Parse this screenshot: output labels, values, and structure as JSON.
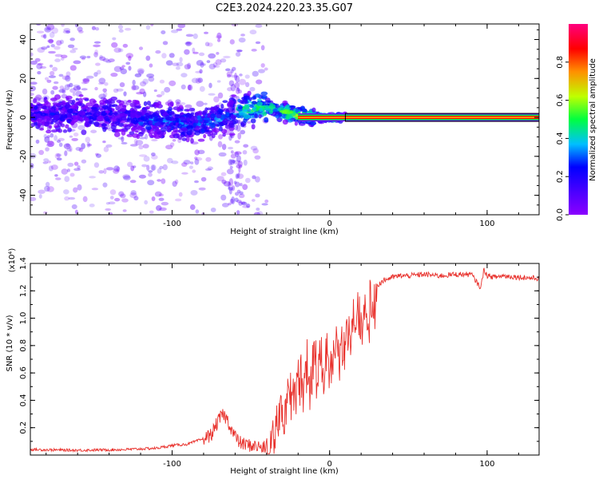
{
  "title": "C2E3.2024.220.23.35.G07",
  "colors": {
    "snr_line": "#e8302b",
    "axes": "#000000",
    "background": "#ffffff"
  },
  "chart_data": [
    {
      "type": "heatmap",
      "xlabel": "Height of straight line (km)",
      "ylabel": "Frequency (Hz)",
      "xlim": [
        -190,
        133
      ],
      "ylim": [
        -50,
        48
      ],
      "xticks": [
        -100,
        0,
        100
      ],
      "xtick_labels": [
        "-100",
        "0",
        "100"
      ],
      "yticks": [
        -40,
        -20,
        0,
        20,
        40
      ],
      "ytick_labels": [
        "-40",
        "-20",
        "0",
        "20",
        "40"
      ],
      "colorbar": {
        "label": "Normalized spectral amplitude",
        "range": [
          0,
          1
        ],
        "ticks": [
          0.0,
          0.2,
          0.4,
          0.6,
          0.8
        ],
        "tick_labels": [
          "0.0",
          "0.2",
          "0.4",
          "0.6",
          "0.8"
        ],
        "colormap": "rainbow (purple-blue-cyan-green-yellow-orange-red-magenta)"
      },
      "features": [
        {
          "description": "scattered low-amplitude noise across all frequencies",
          "x_range": [
            -190,
            -40
          ],
          "amplitude": 0.1
        },
        {
          "description": "noisy ridge near 0 Hz",
          "x_range": [
            -190,
            -40
          ],
          "y": 0,
          "amplitude": 0.2
        },
        {
          "description": "ridge rising toward ~5 Hz, increasing amplitude",
          "x_range": [
            -120,
            -30
          ],
          "amplitude": 0.45
        },
        {
          "description": "steady strong line at 0 Hz",
          "x_range": [
            -20,
            133
          ],
          "y": 0,
          "amplitude": 0.9
        }
      ],
      "ridge": {
        "x": [
          -190,
          -160,
          -130,
          -110,
          -90,
          -75,
          -65,
          -55,
          -45,
          -38,
          -30,
          -20,
          -10,
          0,
          10,
          20,
          60,
          100,
          133
        ],
        "y": [
          1,
          2,
          0,
          -1,
          -3,
          -2,
          1,
          3,
          5,
          5,
          3,
          1,
          0,
          0,
          0,
          0,
          0,
          0,
          0
        ]
      }
    },
    {
      "type": "line",
      "xlabel": "Height of straight line (km)",
      "ylabel": "SNR (10 * v/v)",
      "y_multiplier": "(x10⁴)",
      "xlim": [
        -190,
        133
      ],
      "ylim": [
        0,
        1.4
      ],
      "xticks": [
        -100,
        0,
        100
      ],
      "xtick_labels": [
        "-100",
        "0",
        "100"
      ],
      "yticks": [
        0.2,
        0.4,
        0.6,
        0.8,
        1.0,
        1.2,
        1.4
      ],
      "ytick_labels": [
        "0.2",
        "0.4",
        "0.6",
        "0.8",
        "1.0",
        "1.2",
        "1.4"
      ],
      "series": [
        {
          "color": "#e8302b",
          "x": [
            -190,
            -160,
            -130,
            -110,
            -100,
            -90,
            -80,
            -75,
            -72,
            -68,
            -65,
            -62,
            -58,
            -55,
            -50,
            -45,
            -40,
            -38,
            -36,
            -34,
            -32,
            -30,
            -28,
            -26,
            -24,
            -22,
            -20,
            -18,
            -16,
            -14,
            -12,
            -10,
            -8,
            -6,
            -4,
            -2,
            0,
            2,
            4,
            6,
            8,
            10,
            12,
            14,
            16,
            18,
            20,
            25,
            30,
            35,
            40,
            45,
            50,
            60,
            70,
            80,
            90,
            96,
            98,
            100,
            105,
            110,
            120,
            133
          ],
          "y": [
            0.04,
            0.035,
            0.04,
            0.05,
            0.07,
            0.08,
            0.12,
            0.15,
            0.22,
            0.3,
            0.26,
            0.18,
            0.1,
            0.08,
            0.07,
            0.06,
            0.05,
            0.1,
            0.2,
            0.3,
            0.45,
            0.55,
            0.42,
            0.6,
            0.5,
            0.65,
            0.58,
            0.72,
            0.55,
            0.78,
            0.62,
            0.85,
            0.68,
            0.88,
            0.72,
            0.9,
            0.6,
            0.82,
            0.92,
            0.8,
            0.95,
            0.9,
            1.0,
            0.95,
            1.05,
            1.08,
            1.12,
            1.18,
            1.24,
            1.28,
            1.3,
            1.31,
            1.31,
            1.32,
            1.31,
            1.32,
            1.32,
            1.22,
            1.36,
            1.31,
            1.3,
            1.31,
            1.3,
            1.29
          ]
        }
      ]
    }
  ]
}
